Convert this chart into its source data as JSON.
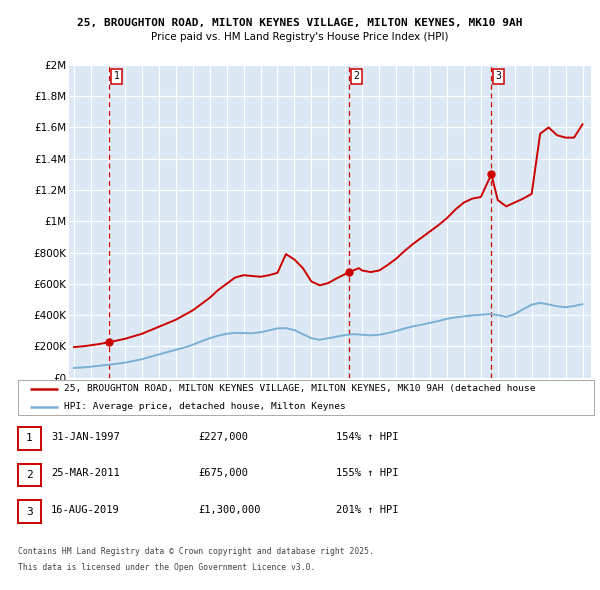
{
  "title1": "25, BROUGHTON ROAD, MILTON KEYNES VILLAGE, MILTON KEYNES, MK10 9AH",
  "title2": "Price paid vs. HM Land Registry's House Price Index (HPI)",
  "ylim": [
    0,
    2000000
  ],
  "yticks": [
    0,
    200000,
    400000,
    600000,
    800000,
    1000000,
    1200000,
    1400000,
    1600000,
    1800000,
    2000000
  ],
  "ytick_labels": [
    "£0",
    "£200K",
    "£400K",
    "£600K",
    "£800K",
    "£1M",
    "£1.2M",
    "£1.4M",
    "£1.6M",
    "£1.8M",
    "£2M"
  ],
  "xlim_start": 1994.7,
  "xlim_end": 2025.5,
  "plot_bg_color": "#dce9f5",
  "grid_color": "#ffffff",
  "sale_dates": [
    1997.08,
    2011.23,
    2019.62
  ],
  "sale_prices": [
    227000,
    675000,
    1300000
  ],
  "sale_labels": [
    "1",
    "2",
    "3"
  ],
  "vline_color": "#cc0000",
  "sale_dot_color": "#cc0000",
  "house_line_color": "#cc0000",
  "hpi_line_color": "#7bafd4",
  "legend_label_house": "25, BROUGHTON ROAD, MILTON KEYNES VILLAGE, MILTON KEYNES, MK10 9AH (detached house",
  "legend_label_hpi": "HPI: Average price, detached house, Milton Keynes",
  "footer_line1": "Contains HM Land Registry data © Crown copyright and database right 2025.",
  "footer_line2": "This data is licensed under the Open Government Licence v3.0.",
  "table_rows": [
    {
      "num": "1",
      "date": "31-JAN-1997",
      "price": "£227,000",
      "hpi": "154% ↑ HPI"
    },
    {
      "num": "2",
      "date": "25-MAR-2011",
      "price": "£675,000",
      "hpi": "155% ↑ HPI"
    },
    {
      "num": "3",
      "date": "16-AUG-2019",
      "price": "£1,300,000",
      "hpi": "201% ↑ HPI"
    }
  ],
  "hpi_data_x": [
    1995.0,
    1995.5,
    1996.0,
    1996.5,
    1997.0,
    1997.5,
    1998.0,
    1998.5,
    1999.0,
    1999.5,
    2000.0,
    2000.5,
    2001.0,
    2001.5,
    2002.0,
    2002.5,
    2003.0,
    2003.5,
    2004.0,
    2004.5,
    2005.0,
    2005.5,
    2006.0,
    2006.5,
    2007.0,
    2007.5,
    2008.0,
    2008.5,
    2009.0,
    2009.5,
    2010.0,
    2010.5,
    2011.0,
    2011.5,
    2012.0,
    2012.5,
    2013.0,
    2013.5,
    2014.0,
    2014.5,
    2015.0,
    2015.5,
    2016.0,
    2016.5,
    2017.0,
    2017.5,
    2018.0,
    2018.5,
    2019.0,
    2019.5,
    2020.0,
    2020.5,
    2021.0,
    2021.5,
    2022.0,
    2022.5,
    2023.0,
    2023.5,
    2024.0,
    2024.5,
    2025.0
  ],
  "hpi_data_y": [
    62000,
    65000,
    70000,
    76000,
    82000,
    88000,
    96000,
    106000,
    118000,
    133000,
    148000,
    163000,
    178000,
    192000,
    210000,
    232000,
    252000,
    268000,
    280000,
    286000,
    285000,
    283000,
    290000,
    302000,
    315000,
    316000,
    304000,
    278000,
    252000,
    242000,
    252000,
    262000,
    272000,
    278000,
    274000,
    270000,
    274000,
    284000,
    298000,
    314000,
    328000,
    338000,
    350000,
    362000,
    376000,
    385000,
    392000,
    398000,
    402000,
    406000,
    400000,
    388000,
    406000,
    438000,
    466000,
    478000,
    468000,
    456000,
    450000,
    458000,
    470000
  ],
  "house_data_x": [
    1995.0,
    1995.5,
    1996.0,
    1996.5,
    1997.08,
    1998.0,
    1999.0,
    2000.0,
    2001.0,
    2002.0,
    2003.0,
    2003.5,
    2004.0,
    2004.5,
    2005.0,
    2005.5,
    2006.0,
    2006.5,
    2007.0,
    2007.5,
    2008.0,
    2008.5,
    2009.0,
    2009.5,
    2010.0,
    2010.5,
    2011.23,
    2011.8,
    2012.0,
    2012.5,
    2013.0,
    2013.5,
    2014.0,
    2014.5,
    2015.0,
    2015.5,
    2016.0,
    2016.5,
    2017.0,
    2017.5,
    2018.0,
    2018.5,
    2019.0,
    2019.62,
    2020.0,
    2020.5,
    2021.0,
    2021.5,
    2022.0,
    2022.5,
    2023.0,
    2023.5,
    2024.0,
    2024.5,
    2025.0
  ],
  "house_data_y": [
    195000,
    200000,
    207000,
    215000,
    227000,
    248000,
    280000,
    325000,
    370000,
    430000,
    510000,
    560000,
    600000,
    640000,
    655000,
    650000,
    645000,
    655000,
    670000,
    790000,
    755000,
    700000,
    615000,
    590000,
    605000,
    635000,
    675000,
    700000,
    685000,
    675000,
    685000,
    720000,
    760000,
    810000,
    855000,
    895000,
    935000,
    975000,
    1020000,
    1075000,
    1120000,
    1145000,
    1155000,
    1300000,
    1135000,
    1095000,
    1120000,
    1145000,
    1175000,
    1560000,
    1600000,
    1550000,
    1535000,
    1535000,
    1620000
  ]
}
